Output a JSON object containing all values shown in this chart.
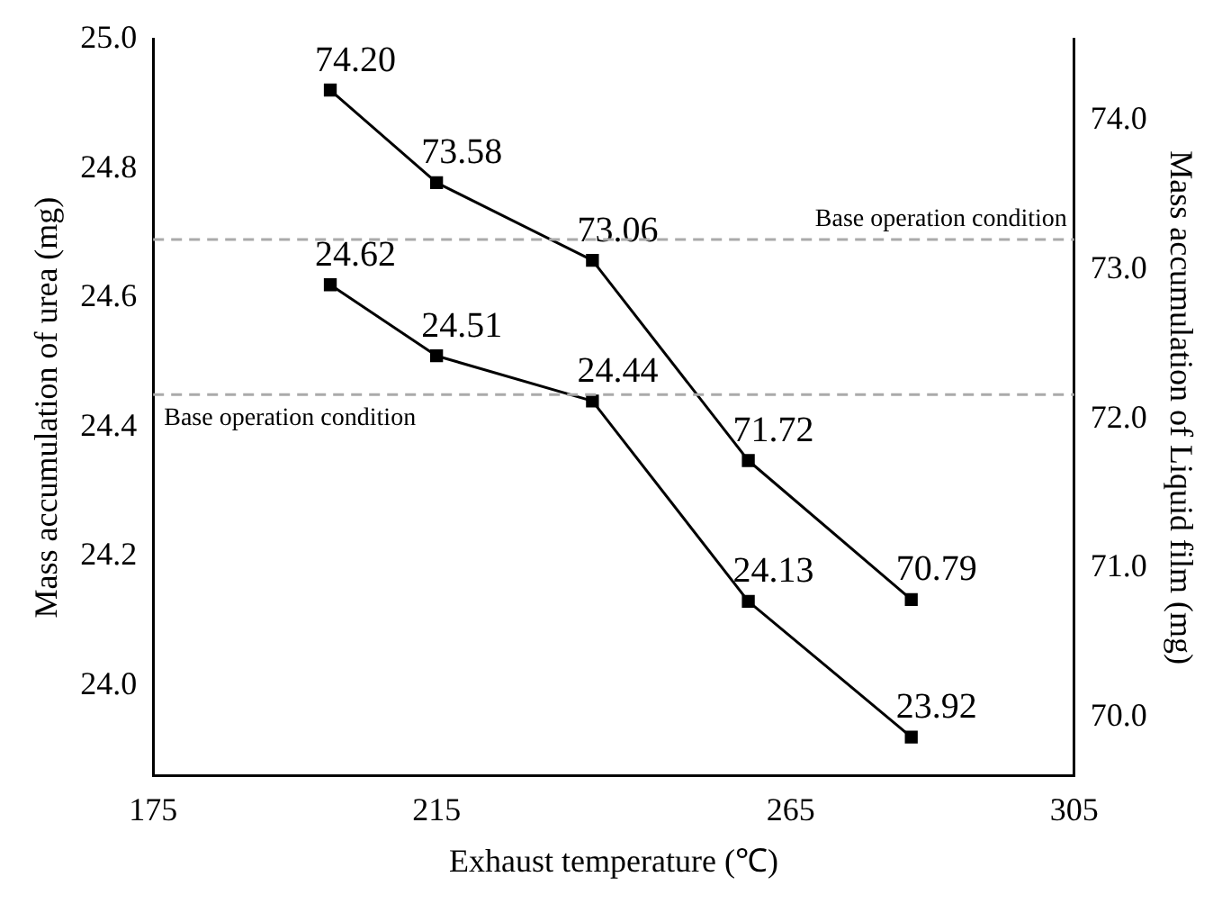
{
  "chart_data": {
    "type": "line",
    "xlabel": "Exhaust temperature (℃)",
    "ylabel": "Mass accumulation of urea (mg)",
    "y2label": "Mass accumulation of Liquid film (mg)",
    "x": [
      200,
      215,
      237,
      259,
      282
    ],
    "series": [
      {
        "color": "#000000",
        "values": [
          24.62,
          24.51,
          24.44,
          24.13,
          23.92
        ],
        "value_labels": [
          "24.62",
          "24.51",
          "24.44",
          "24.13",
          "23.92"
        ]
      },
      {
        "color": "#000000",
        "axis": "y2",
        "values": [
          74.2,
          73.58,
          73.06,
          71.72,
          70.79
        ],
        "value_labels": [
          "74.20",
          "73.58",
          "73.06",
          "71.72",
          "70.79"
        ]
      }
    ],
    "xlim": [
      175,
      305
    ],
    "xticks": [
      175,
      215,
      265,
      305
    ],
    "ylim": [
      23.86,
      25.0
    ],
    "yticks": [
      {
        "value": 24.0,
        "label": "24.0"
      },
      24.2,
      24.4,
      24.6,
      24.8,
      {
        "value": 25.0,
        "label": "25.0"
      }
    ],
    "y2lim": [
      69.61,
      74.54
    ],
    "y2ticks": [
      {
        "value": 70.0,
        "label": "70.0"
      },
      {
        "value": 71.0,
        "label": "71.0"
      },
      {
        "value": 72.0,
        "label": "72.0"
      },
      {
        "value": 73.0,
        "label": "73.0"
      },
      {
        "value": 74.0,
        "label": "74.0"
      }
    ],
    "ref_lines": [
      {
        "axis": "y2",
        "value": 73.2,
        "label": "Base operation condition",
        "color": "#aaaaaa",
        "line_style": "dashed"
      },
      {
        "axis": "y",
        "value": 24.45,
        "label": "Base operation condition",
        "color": "#aaaaaa",
        "line_style": "dashed"
      }
    ],
    "marker": "square",
    "line_style": "solid",
    "grid": false,
    "legend": false
  }
}
